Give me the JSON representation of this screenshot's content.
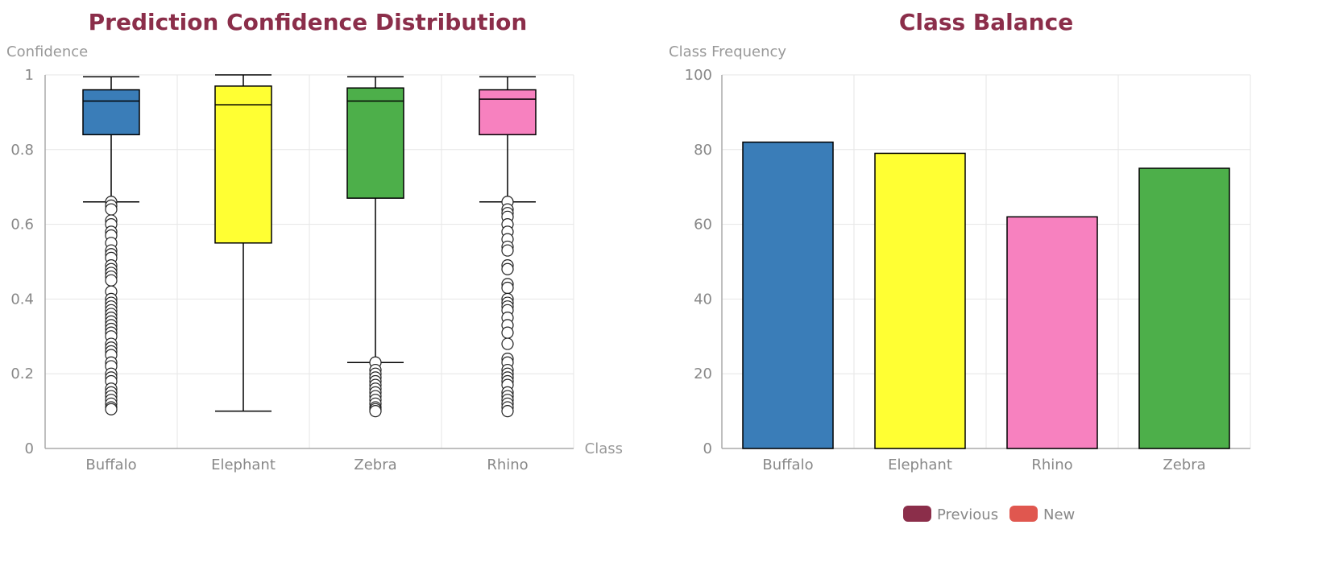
{
  "colors": {
    "title": "#8B2E4A",
    "grid": "#e6e6e6",
    "axis": "#aaaaaa",
    "buffalo": "#3A7DB8",
    "elephant": "#FFFF33",
    "zebra": "#4DAF4A",
    "rhino": "#F781BF",
    "legend_previous": "#8B2E4A",
    "legend_new": "#E0574F"
  },
  "chart_data": [
    {
      "type": "box",
      "title": "Prediction Confidence Distribution",
      "ylabel": "Confidence",
      "xlabel": "Class",
      "ylim": [
        0,
        1
      ],
      "yticks": [
        "0",
        "0.2",
        "0.4",
        "0.6",
        "0.8",
        "1"
      ],
      "yticks_values": [
        0,
        0.2,
        0.4,
        0.6,
        0.8,
        1
      ],
      "categories": [
        "Buffalo",
        "Elephant",
        "Zebra",
        "Rhino"
      ],
      "boxes": [
        {
          "name": "Buffalo",
          "color": "#3A7DB8",
          "whisker_low": 0.66,
          "q1": 0.84,
          "median": 0.93,
          "q3": 0.96,
          "whisker_high": 0.995,
          "outliers": [
            0.66,
            0.65,
            0.64,
            0.61,
            0.6,
            0.58,
            0.57,
            0.55,
            0.53,
            0.52,
            0.51,
            0.49,
            0.48,
            0.47,
            0.46,
            0.45,
            0.42,
            0.4,
            0.39,
            0.38,
            0.37,
            0.36,
            0.35,
            0.34,
            0.33,
            0.32,
            0.31,
            0.3,
            0.28,
            0.27,
            0.26,
            0.25,
            0.23,
            0.22,
            0.2,
            0.19,
            0.18,
            0.16,
            0.15,
            0.14,
            0.13,
            0.12,
            0.11,
            0.105
          ]
        },
        {
          "name": "Elephant",
          "color": "#FFFF33",
          "whisker_low": 0.1,
          "q1": 0.55,
          "median": 0.92,
          "q3": 0.97,
          "whisker_high": 1.0,
          "outliers": []
        },
        {
          "name": "Zebra",
          "color": "#4DAF4A",
          "whisker_low": 0.23,
          "q1": 0.67,
          "median": 0.93,
          "q3": 0.965,
          "whisker_high": 0.995,
          "outliers": [
            0.23,
            0.21,
            0.2,
            0.19,
            0.18,
            0.17,
            0.16,
            0.15,
            0.14,
            0.13,
            0.12,
            0.11,
            0.105,
            0.1
          ]
        },
        {
          "name": "Rhino",
          "color": "#F781BF",
          "whisker_low": 0.66,
          "q1": 0.84,
          "median": 0.935,
          "q3": 0.96,
          "whisker_high": 0.995,
          "outliers": [
            0.66,
            0.64,
            0.63,
            0.62,
            0.6,
            0.58,
            0.56,
            0.54,
            0.53,
            0.49,
            0.48,
            0.44,
            0.43,
            0.4,
            0.39,
            0.38,
            0.37,
            0.35,
            0.33,
            0.31,
            0.28,
            0.24,
            0.23,
            0.21,
            0.2,
            0.19,
            0.18,
            0.17,
            0.15,
            0.14,
            0.13,
            0.12,
            0.11,
            0.1
          ]
        }
      ]
    },
    {
      "type": "bar",
      "title": "Class Balance",
      "ylabel": "Class Frequency",
      "ylim": [
        0,
        100
      ],
      "yticks": [
        "0",
        "20",
        "40",
        "60",
        "80",
        "100"
      ],
      "yticks_values": [
        0,
        20,
        40,
        60,
        80,
        100
      ],
      "categories": [
        "Buffalo",
        "Elephant",
        "Rhino",
        "Zebra"
      ],
      "values": [
        82,
        79,
        62,
        75
      ],
      "bar_colors": [
        "#3A7DB8",
        "#FFFF33",
        "#F781BF",
        "#4DAF4A"
      ],
      "legend": [
        {
          "label": "Previous",
          "color": "#8B2E4A"
        },
        {
          "label": "New",
          "color": "#E0574F"
        }
      ]
    }
  ]
}
